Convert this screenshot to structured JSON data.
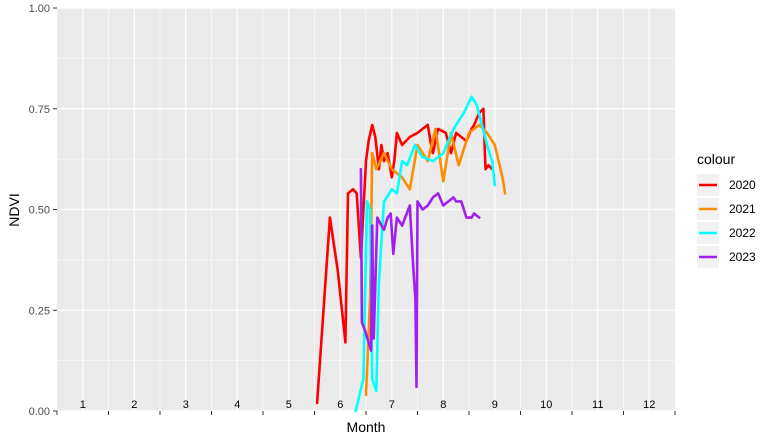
{
  "chart_data": {
    "type": "line",
    "xlabel": "Month",
    "ylabel": "NDVI",
    "xlim": [
      0.5,
      12.5
    ],
    "ylim": [
      0,
      1
    ],
    "y_ticks": [
      "0.00",
      "0.25",
      "0.50",
      "0.75",
      "1.00"
    ],
    "y_tick_values": [
      0,
      0.25,
      0.5,
      0.75,
      1.0
    ],
    "month_labels": [
      "1",
      "2",
      "3",
      "4",
      "5",
      "6",
      "7",
      "8",
      "9",
      "10",
      "11",
      "12"
    ],
    "grid": true,
    "legend": {
      "title": "colour",
      "position": "right"
    },
    "series": [
      {
        "name": "2020",
        "color": "#ff0000",
        "x": [
          5.55,
          5.8,
          5.95,
          6.1,
          6.15,
          6.25,
          6.32,
          6.4,
          6.5,
          6.55,
          6.62,
          6.68,
          6.75,
          6.8,
          6.85,
          6.92,
          7.0,
          7.05,
          7.1,
          7.2,
          7.35,
          7.5,
          7.6,
          7.7,
          7.75,
          7.8,
          7.9,
          8.05,
          8.15,
          8.25,
          8.35,
          8.45,
          8.55,
          8.6,
          8.7,
          8.78,
          8.8,
          8.82,
          8.88,
          8.95
        ],
        "y": [
          0.02,
          0.48,
          0.35,
          0.17,
          0.54,
          0.55,
          0.54,
          0.38,
          0.62,
          0.67,
          0.71,
          0.68,
          0.6,
          0.66,
          0.62,
          0.64,
          0.58,
          0.62,
          0.69,
          0.66,
          0.68,
          0.69,
          0.7,
          0.71,
          0.67,
          0.64,
          0.7,
          0.69,
          0.64,
          0.69,
          0.68,
          0.67,
          0.7,
          0.71,
          0.74,
          0.75,
          0.67,
          0.6,
          0.61,
          0.6
        ]
      },
      {
        "name": "2021",
        "color": "#ff8c00",
        "x": [
          6.5,
          6.58,
          6.62,
          6.7,
          6.85,
          7.0,
          7.2,
          7.35,
          7.5,
          7.7,
          7.85,
          8.0,
          8.15,
          8.3,
          8.5,
          8.7,
          8.85,
          9.0,
          9.15,
          9.2
        ],
        "y": [
          0.04,
          0.28,
          0.64,
          0.6,
          0.64,
          0.6,
          0.58,
          0.55,
          0.66,
          0.62,
          0.7,
          0.57,
          0.69,
          0.61,
          0.69,
          0.71,
          0.69,
          0.66,
          0.58,
          0.54
        ]
      },
      {
        "name": "2022",
        "color": "#00ffff",
        "x": [
          6.3,
          6.45,
          6.52,
          6.58,
          6.62,
          6.7,
          6.75,
          6.85,
          7.0,
          7.1,
          7.2,
          7.3,
          7.45,
          7.6,
          7.8,
          8.0,
          8.2,
          8.4,
          8.55,
          8.65,
          8.75,
          8.85,
          8.95,
          9.0
        ],
        "y": [
          0.0,
          0.08,
          0.52,
          0.5,
          0.08,
          0.05,
          0.32,
          0.52,
          0.55,
          0.54,
          0.62,
          0.61,
          0.66,
          0.63,
          0.62,
          0.64,
          0.7,
          0.74,
          0.78,
          0.76,
          0.71,
          0.66,
          0.62,
          0.56
        ]
      },
      {
        "name": "2023",
        "color": "#a020f0",
        "x": [
          6.4,
          6.42,
          6.48,
          6.55,
          6.6,
          6.62,
          6.65,
          6.72,
          6.8,
          6.85,
          6.92,
          6.98,
          7.03,
          7.1,
          7.2,
          7.35,
          7.42,
          7.46,
          7.48,
          7.5,
          7.6,
          7.7,
          7.8,
          7.9,
          8.0,
          8.1,
          8.2,
          8.25,
          8.35,
          8.45,
          8.55,
          8.6,
          8.7
        ],
        "y": [
          0.6,
          0.22,
          0.2,
          0.17,
          0.15,
          0.46,
          0.18,
          0.48,
          0.46,
          0.45,
          0.48,
          0.49,
          0.39,
          0.48,
          0.46,
          0.51,
          0.35,
          0.28,
          0.06,
          0.52,
          0.5,
          0.51,
          0.53,
          0.54,
          0.51,
          0.52,
          0.53,
          0.52,
          0.52,
          0.48,
          0.48,
          0.49,
          0.48
        ]
      }
    ]
  }
}
